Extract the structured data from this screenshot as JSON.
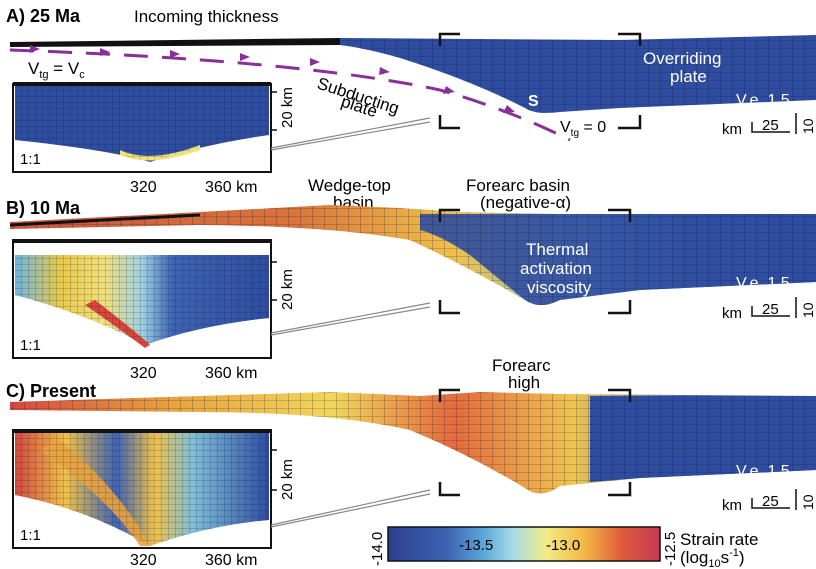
{
  "panels": [
    {
      "id": "A",
      "title": "A) 25 Ma",
      "labels": {
        "incoming": "Incoming thickness",
        "vtg_vc": "V",
        "vtg_sub": "tg",
        "vtg_eq": " = V",
        "vtg_c": "c",
        "subducting_1": "Subducting",
        "subducting_2": "plate",
        "overriding_1": "Overriding",
        "overriding_2": "plate",
        "s": "S",
        "vtg0": "V",
        "vtg0_sub": "tg",
        "vtg0_eq": " = 0"
      }
    },
    {
      "id": "B",
      "title": "B) 10 Ma",
      "labels": {
        "wedge_1": "Wedge-top",
        "wedge_2": "basin",
        "forearc_1": "Forearc basin",
        "forearc_2": "(negative-α)",
        "thermal_1": "Thermal",
        "thermal_2": "activation",
        "thermal_3": "viscosity"
      }
    },
    {
      "id": "C",
      "title": "C) Present",
      "labels": {
        "high_1": "Forearc",
        "high_2": "high"
      }
    }
  ],
  "common": {
    "ve": "V.e. 1.5",
    "scale_km": "km",
    "scale_25": "25",
    "scale_10": "10",
    "inset_ratio": "1:1",
    "inset_depth": "20 km",
    "inset_x1": "320",
    "inset_x2": "360 km"
  },
  "colorbar": {
    "ticks": [
      "-14.0",
      "-13.5",
      "-13.0",
      "-12.5"
    ],
    "title_1": "Strain rate",
    "title_2": "(log",
    "title_sub": "10",
    "title_3": "s",
    "title_sup": "-1",
    "title_4": ")",
    "stops": [
      "#2d3f8f",
      "#3f63b3",
      "#58a8d8",
      "#a8dbe6",
      "#f2ec86",
      "#f4b844",
      "#e05a3a",
      "#c73a58"
    ]
  },
  "colors": {
    "blue": "#2f4da0",
    "arrow": "#8a2f9a"
  }
}
